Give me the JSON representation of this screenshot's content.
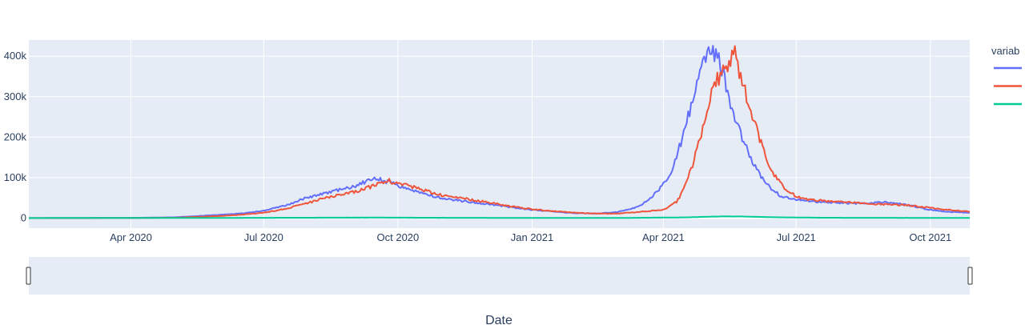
{
  "chart_data": {
    "type": "line",
    "xlabel": "Date",
    "ylabel": "",
    "x_range": [
      "2020-01-22",
      "2021-10-28"
    ],
    "ylim": [
      -25000,
      440000
    ],
    "y_ticks": [
      0,
      100000,
      200000,
      300000,
      400000
    ],
    "y_tick_labels": [
      "0",
      "100k",
      "200k",
      "300k",
      "400k"
    ],
    "x_ticks": [
      "2020-04-01",
      "2020-07-01",
      "2020-10-01",
      "2021-01-01",
      "2021-04-01",
      "2021-07-01",
      "2021-10-01"
    ],
    "x_tick_labels": [
      "Apr 2020",
      "Jul 2020",
      "Oct 2020",
      "Jan 2021",
      "Apr 2021",
      "Jul 2021",
      "Oct 2021"
    ],
    "grid": true,
    "legend": {
      "title": "variab",
      "position": "right"
    },
    "range_slider": true,
    "series": [
      {
        "color": "#636efa",
        "points": [
          [
            "2020-01-22",
            0
          ],
          [
            "2020-03-01",
            0
          ],
          [
            "2020-04-01",
            400
          ],
          [
            "2020-05-01",
            1800
          ],
          [
            "2020-06-01",
            8000
          ],
          [
            "2020-06-15",
            11000
          ],
          [
            "2020-07-01",
            18000
          ],
          [
            "2020-07-15",
            30000
          ],
          [
            "2020-08-01",
            52000
          ],
          [
            "2020-08-15",
            63000
          ],
          [
            "2020-09-01",
            78000
          ],
          [
            "2020-09-10",
            92000
          ],
          [
            "2020-09-16",
            97000
          ],
          [
            "2020-09-25",
            88000
          ],
          [
            "2020-10-05",
            75000
          ],
          [
            "2020-10-15",
            65000
          ],
          [
            "2020-11-01",
            48000
          ],
          [
            "2020-11-15",
            42000
          ],
          [
            "2020-12-01",
            35000
          ],
          [
            "2020-12-15",
            28000
          ],
          [
            "2021-01-01",
            20000
          ],
          [
            "2021-01-15",
            16000
          ],
          [
            "2021-02-01",
            12000
          ],
          [
            "2021-02-15",
            11000
          ],
          [
            "2021-03-01",
            15000
          ],
          [
            "2021-03-15",
            28000
          ],
          [
            "2021-03-25",
            55000
          ],
          [
            "2021-04-05",
            100000
          ],
          [
            "2021-04-10",
            150000
          ],
          [
            "2021-04-15",
            210000
          ],
          [
            "2021-04-20",
            280000
          ],
          [
            "2021-04-25",
            350000
          ],
          [
            "2021-04-30",
            395000
          ],
          [
            "2021-05-05",
            412000
          ],
          [
            "2021-05-09",
            400000
          ],
          [
            "2021-05-13",
            345000
          ],
          [
            "2021-05-18",
            270000
          ],
          [
            "2021-05-23",
            220000
          ],
          [
            "2021-05-28",
            170000
          ],
          [
            "2021-06-03",
            125000
          ],
          [
            "2021-06-10",
            85000
          ],
          [
            "2021-06-20",
            55000
          ],
          [
            "2021-07-01",
            45000
          ],
          [
            "2021-07-15",
            40000
          ],
          [
            "2021-08-01",
            38000
          ],
          [
            "2021-08-15",
            36000
          ],
          [
            "2021-09-01",
            40000
          ],
          [
            "2021-09-15",
            32000
          ],
          [
            "2021-10-01",
            20000
          ],
          [
            "2021-10-15",
            15000
          ],
          [
            "2021-10-28",
            13000
          ]
        ]
      },
      {
        "color": "#ef553b",
        "points": [
          [
            "2020-01-22",
            0
          ],
          [
            "2020-03-01",
            0
          ],
          [
            "2020-04-01",
            100
          ],
          [
            "2020-05-01",
            800
          ],
          [
            "2020-06-01",
            5000
          ],
          [
            "2020-06-15",
            8000
          ],
          [
            "2020-07-01",
            13000
          ],
          [
            "2020-07-15",
            22000
          ],
          [
            "2020-08-01",
            38000
          ],
          [
            "2020-08-15",
            52000
          ],
          [
            "2020-09-01",
            65000
          ],
          [
            "2020-09-15",
            80000
          ],
          [
            "2020-09-25",
            92000
          ],
          [
            "2020-10-01",
            85000
          ],
          [
            "2020-10-10",
            78000
          ],
          [
            "2020-10-20",
            68000
          ],
          [
            "2020-11-01",
            55000
          ],
          [
            "2020-11-15",
            48000
          ],
          [
            "2020-12-01",
            40000
          ],
          [
            "2020-12-15",
            30000
          ],
          [
            "2021-01-01",
            22000
          ],
          [
            "2021-01-15",
            17000
          ],
          [
            "2021-02-01",
            13000
          ],
          [
            "2021-02-15",
            11000
          ],
          [
            "2021-03-01",
            11000
          ],
          [
            "2021-03-15",
            15000
          ],
          [
            "2021-04-01",
            20000
          ],
          [
            "2021-04-10",
            40000
          ],
          [
            "2021-04-15",
            70000
          ],
          [
            "2021-04-20",
            120000
          ],
          [
            "2021-04-25",
            180000
          ],
          [
            "2021-05-01",
            270000
          ],
          [
            "2021-05-06",
            330000
          ],
          [
            "2021-05-10",
            350000
          ],
          [
            "2021-05-16",
            370000
          ],
          [
            "2021-05-19",
            420000
          ],
          [
            "2021-05-23",
            350000
          ],
          [
            "2021-05-28",
            300000
          ],
          [
            "2021-06-03",
            230000
          ],
          [
            "2021-06-10",
            150000
          ],
          [
            "2021-06-18",
            95000
          ],
          [
            "2021-06-25",
            65000
          ],
          [
            "2021-07-05",
            48000
          ],
          [
            "2021-07-20",
            42000
          ],
          [
            "2021-08-01",
            40000
          ],
          [
            "2021-08-15",
            36000
          ],
          [
            "2021-09-01",
            34000
          ],
          [
            "2021-09-15",
            32000
          ],
          [
            "2021-10-01",
            25000
          ],
          [
            "2021-10-15",
            20000
          ],
          [
            "2021-10-28",
            16000
          ]
        ]
      },
      {
        "color": "#00cc96",
        "points": [
          [
            "2020-01-22",
            0
          ],
          [
            "2020-06-01",
            300
          ],
          [
            "2020-08-01",
            800
          ],
          [
            "2020-09-15",
            1100
          ],
          [
            "2020-11-01",
            600
          ],
          [
            "2021-01-01",
            250
          ],
          [
            "2021-03-01",
            150
          ],
          [
            "2021-04-15",
            1500
          ],
          [
            "2021-05-10",
            4000
          ],
          [
            "2021-05-25",
            3800
          ],
          [
            "2021-06-15",
            2000
          ],
          [
            "2021-07-15",
            800
          ],
          [
            "2021-08-15",
            500
          ],
          [
            "2021-10-28",
            300
          ]
        ]
      }
    ]
  }
}
